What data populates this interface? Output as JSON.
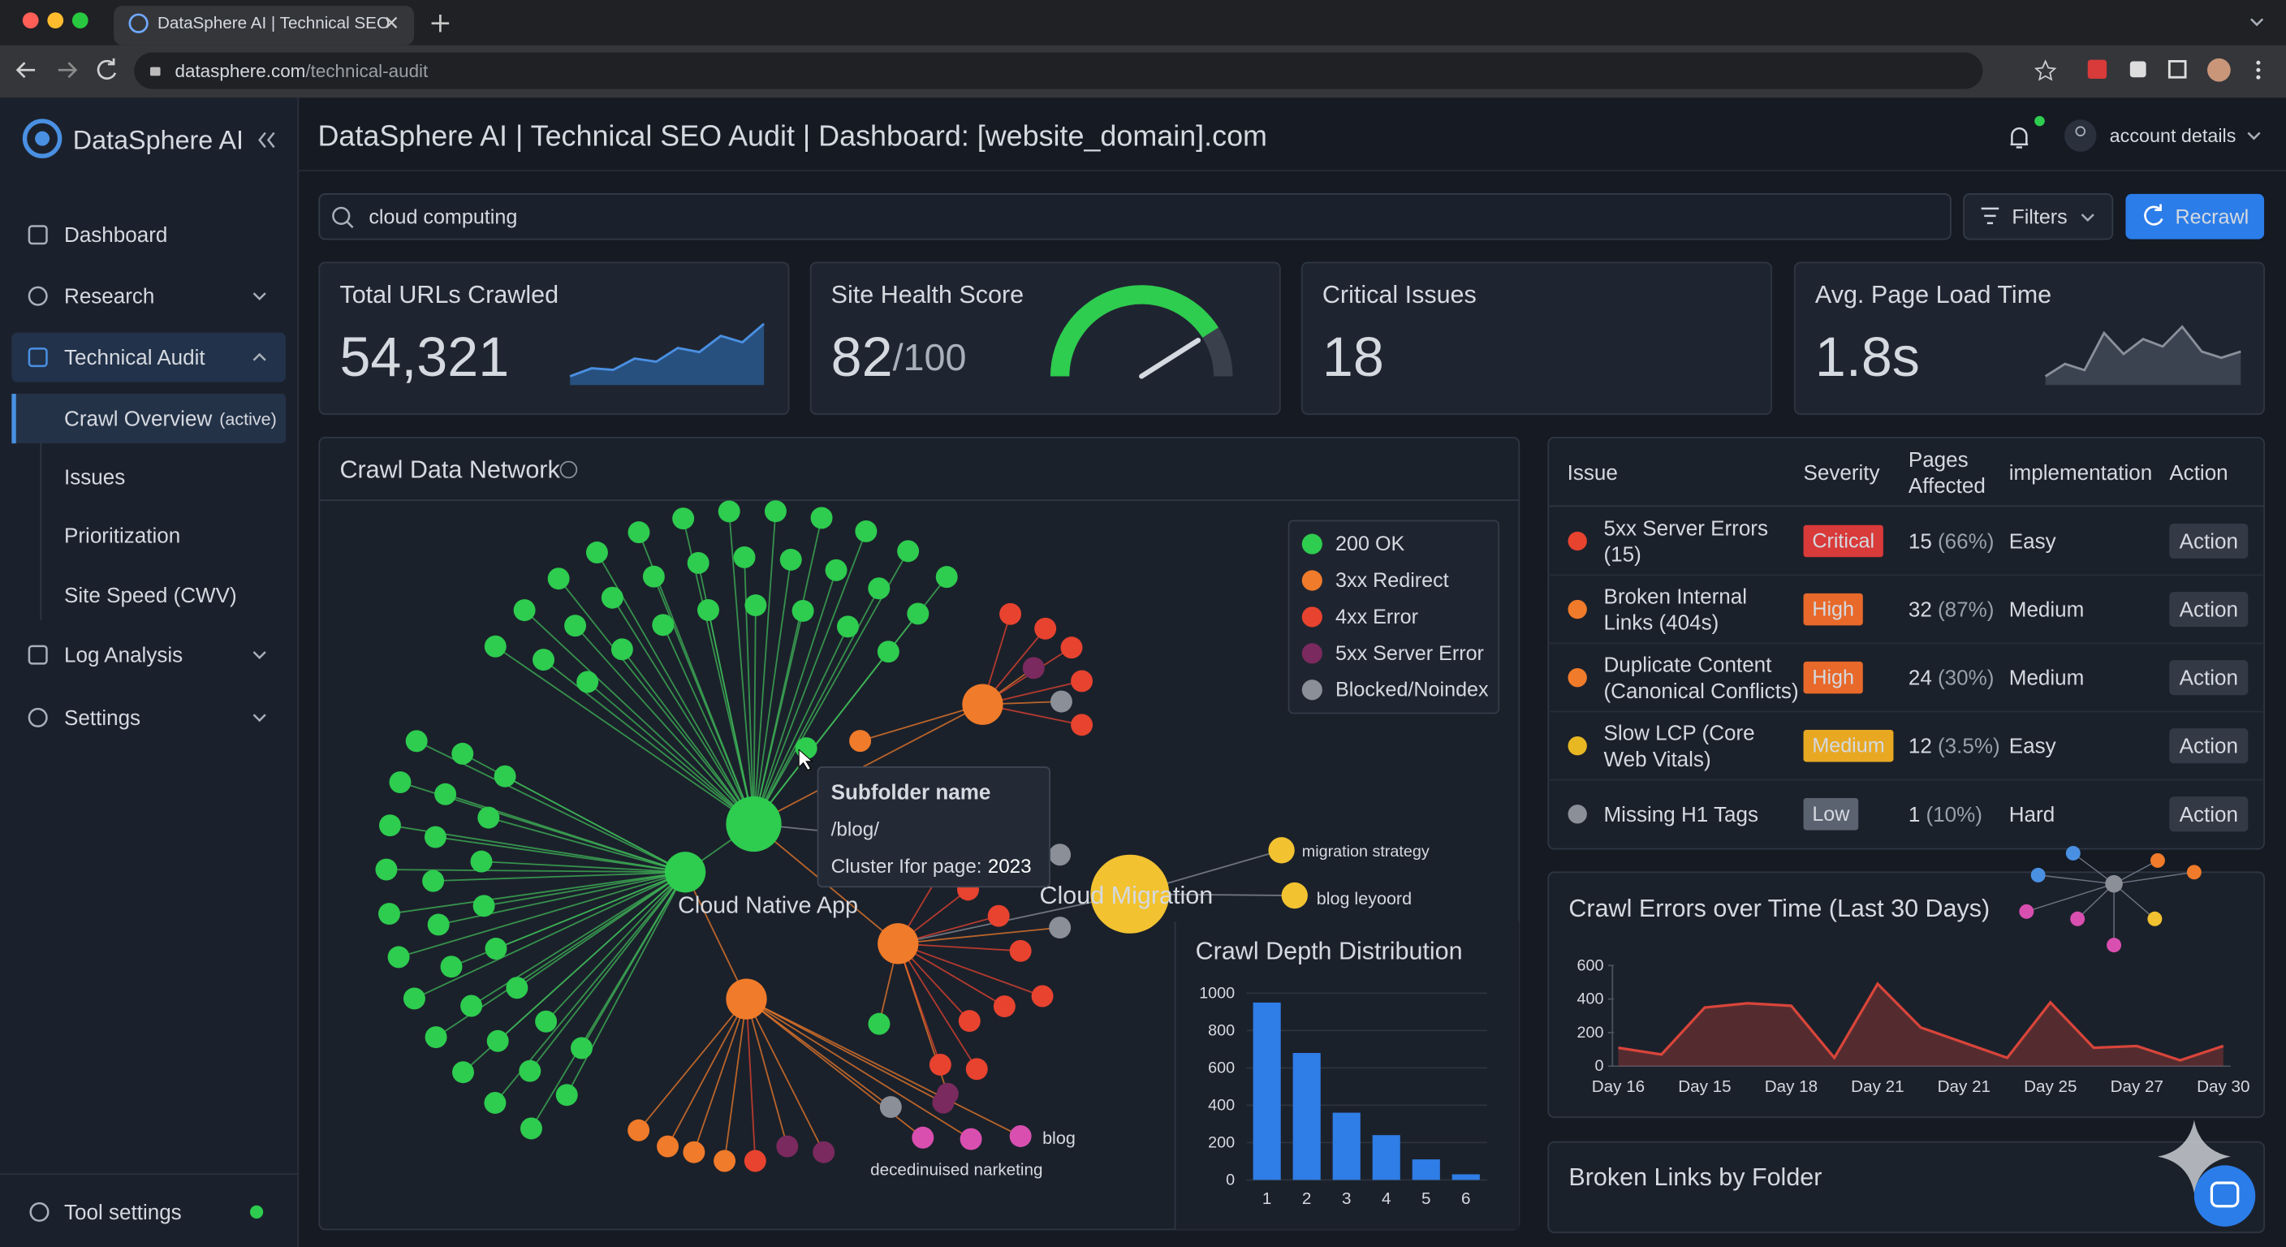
{
  "browser": {
    "tab_title": "DataSphere AI | Technical SEO",
    "url_domain": "datasphere.com",
    "url_path": "/technical-audit"
  },
  "sidebar": {
    "brand": "DataSphere AI",
    "nav": [
      "Dashboard",
      "Research",
      "Technical Audit"
    ],
    "subnav": [
      "Crawl Overview",
      "Issues",
      "Prioritization",
      "Site Speed (CWV)"
    ],
    "active_note": "(active)",
    "nav_more": [
      "Log Analysis",
      "Settings"
    ],
    "footer": "Tool settings"
  },
  "header": {
    "title": "DataSphere AI | Technical SEO Audit | Dashboard: [website_domain].com",
    "account": "account details"
  },
  "search": {
    "query": "cloud computing"
  },
  "toolbar": {
    "filters": "Filters",
    "recrawl": "Recrawl"
  },
  "kpis": [
    {
      "title": "Total URLs Crawled",
      "value": "54,321",
      "trend": [
        20,
        30,
        28,
        42,
        38,
        55,
        50,
        70,
        62,
        85
      ]
    },
    {
      "title": "Site Health Score",
      "score": 82,
      "suffix": "/100"
    },
    {
      "title": "Critical Issues",
      "value": "18"
    },
    {
      "title": "Avg. Page Load Time",
      "value": "1.8s",
      "trend": [
        20,
        30,
        25,
        55,
        38,
        50,
        44,
        60,
        40,
        35,
        40
      ]
    }
  ],
  "network": {
    "title": "Crawl Data Network",
    "legend": [
      {
        "name": "200 OK",
        "color": "#2ecc4f"
      },
      {
        "name": "3xx Redirect",
        "color": "#f07b2a"
      },
      {
        "name": "4xx Error",
        "color": "#e8432f"
      },
      {
        "name": "5xx Server Error",
        "color": "#7a2a5e"
      },
      {
        "name": "Blocked/Noindex",
        "color": "#8a8f98"
      }
    ],
    "tooltip": {
      "title": "Subfolder name",
      "path": "/blog/",
      "cluster_label": "Cluster Ifor page:",
      "cluster_value": "2023"
    },
    "labels": [
      "Cloud Native App",
      "Cloud Migration",
      "migration strategy",
      "blog leyoord",
      "blog",
      "decedinuised narketing"
    ]
  },
  "issues": {
    "headers": [
      [
        "Issue"
      ],
      [
        "Severity"
      ],
      [
        "Pages",
        "Affected"
      ],
      [
        "implementation"
      ],
      [
        "Action"
      ]
    ],
    "rows": [
      {
        "issue": [
          "5xx Server Errors",
          "(15)"
        ],
        "severity": "Critical",
        "severity_color": "#d93a3a",
        "pages": 15,
        "pct": "(66%)",
        "impl": "Easy",
        "action": "Action",
        "icon_color": "#e8432f"
      },
      {
        "issue": [
          "Broken Internal",
          "Links (404s)"
        ],
        "severity": "High",
        "severity_color": "#e8692a",
        "pages": 32,
        "pct": "(87%)",
        "impl": "Medium",
        "action": "Action",
        "icon_color": "#f07b2a"
      },
      {
        "issue": [
          "Duplicate Content",
          "(Canonical Conflicts)"
        ],
        "severity": "High",
        "severity_color": "#e8692a",
        "pages": 24,
        "pct": "(30%)",
        "impl": "Medium",
        "action": "Action",
        "icon_color": "#f07b2a"
      },
      {
        "issue": [
          "Slow LCP (Core",
          "Web Vitals)"
        ],
        "severity": "Medium",
        "severity_color": "#e8a822",
        "pages": 12,
        "pct": "(3.5%)",
        "impl": "Easy",
        "action": "Action",
        "icon_color": "#e8b822"
      },
      {
        "issue": [
          "Missing H1 Tags"
        ],
        "severity": "Low",
        "severity_color": "#5b6270",
        "pages": 1,
        "pct": "(10%)",
        "impl": "Hard",
        "action": "Action",
        "icon_color": "#8a8f98"
      }
    ]
  },
  "crawl_errors": {
    "type": "area",
    "title": "Crawl Errors over Time (Last 30 Days)",
    "color": "#d9453a",
    "categories": [
      "Day 16",
      null,
      "Day 15",
      null,
      "Day 18",
      null,
      "Day 21",
      null,
      "Day 21",
      null,
      "Day 25",
      null,
      "Day 27",
      null,
      "Day 30"
    ],
    "values": [
      110,
      70,
      350,
      375,
      360,
      50,
      490,
      230,
      140,
      50,
      380,
      110,
      120,
      35,
      120
    ],
    "ylim": [
      0,
      600
    ],
    "yticks": [
      0,
      200,
      400,
      600
    ]
  },
  "crawl_depth": {
    "type": "bar",
    "title": "Crawl Depth Distribution",
    "color": "#2f7de6",
    "categories": [
      "1",
      "2",
      "3",
      "4",
      "5",
      "6"
    ],
    "values": [
      950,
      680,
      360,
      240,
      110,
      30
    ],
    "ylim": [
      0,
      1000
    ],
    "yticks": [
      0,
      200,
      400,
      600,
      800,
      1000
    ],
    "grid": true
  },
  "broken_links": {
    "title": "Broken Links by Folder"
  }
}
